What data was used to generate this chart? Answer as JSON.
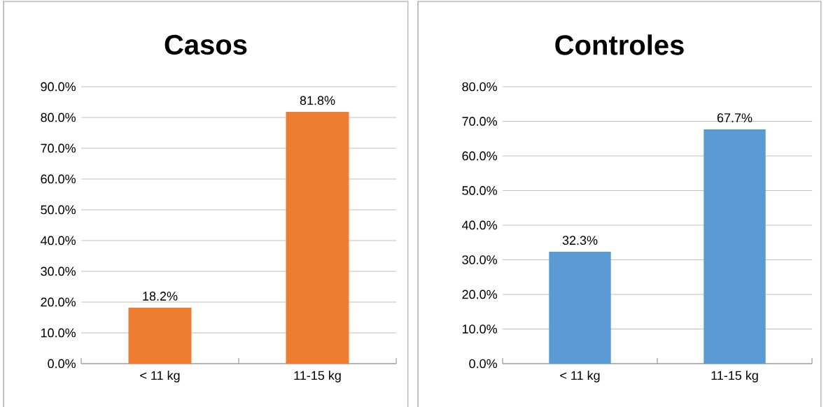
{
  "chart_data": [
    {
      "type": "bar",
      "title": "Casos",
      "categories": [
        "< 11 kg",
        "11-15 kg"
      ],
      "values": [
        18.2,
        81.8
      ],
      "color": "#ed7d31",
      "value_labels": [
        "18.2%",
        "81.8%"
      ],
      "ylim": [
        0,
        90
      ],
      "yticks": [
        {
          "value": 0,
          "label": "0.0%"
        },
        {
          "value": 10,
          "label": "10.0%"
        },
        {
          "value": 20,
          "label": "20.0%"
        },
        {
          "value": 30,
          "label": "30.0%"
        },
        {
          "value": 40,
          "label": "40.0%"
        },
        {
          "value": 50,
          "label": "50.0%"
        },
        {
          "value": 60,
          "label": "60.0%"
        },
        {
          "value": 70,
          "label": "70.0%"
        },
        {
          "value": 80,
          "label": "80.0%"
        },
        {
          "value": 90,
          "label": "90.0%"
        }
      ],
      "grid": "y"
    },
    {
      "type": "bar",
      "title": "Controles",
      "categories": [
        "< 11 kg",
        "11-15 kg"
      ],
      "values": [
        32.3,
        67.7
      ],
      "color": "#5b9bd5",
      "value_labels": [
        "32.3%",
        "67.7%"
      ],
      "ylim": [
        0,
        80
      ],
      "yticks": [
        {
          "value": 0,
          "label": "0.0%"
        },
        {
          "value": 10,
          "label": "10.0%"
        },
        {
          "value": 20,
          "label": "20.0%"
        },
        {
          "value": 30,
          "label": "30.0%"
        },
        {
          "value": 40,
          "label": "40.0%"
        },
        {
          "value": 50,
          "label": "50.0%"
        },
        {
          "value": 60,
          "label": "60.0%"
        },
        {
          "value": 70,
          "label": "70.0%"
        },
        {
          "value": 80,
          "label": "80.0%"
        }
      ],
      "grid": "y"
    }
  ]
}
